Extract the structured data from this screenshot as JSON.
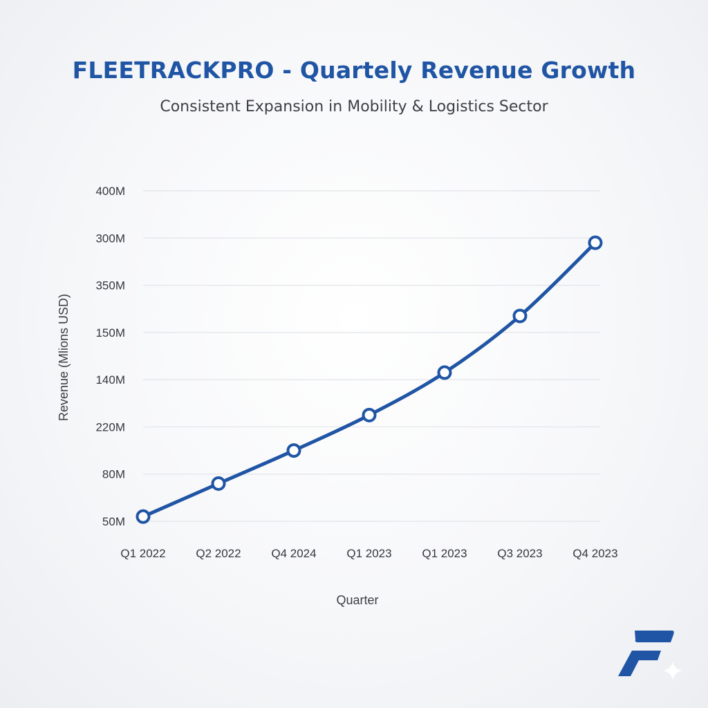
{
  "chart_data": {
    "type": "line",
    "title": "FLEETRACKPRO - Quartely Revenue Growth",
    "subtitle": "Consistent Expansion in Mobility & Logistics Sector",
    "xlabel": "Quarter",
    "ylabel": "Revenue (Mlions USD)",
    "categories": [
      "Q1 2022",
      "Q2 2022",
      "Q4 2024",
      "Q1 2023",
      "Q1 2023",
      "Q3 2023",
      "Q4 2023"
    ],
    "y_tick_labels": [
      "50M",
      "80M",
      "220M",
      "140M",
      "150M",
      "350M",
      "300M",
      "400M"
    ],
    "y_tick_positions": [
      0,
      1,
      2,
      3,
      4,
      5,
      6,
      7
    ],
    "ylim": [
      0,
      7
    ],
    "series": [
      {
        "values": [
          0.1,
          0.8,
          1.5,
          2.25,
          3.15,
          4.35,
          5.9
        ]
      }
    ],
    "grid": true,
    "colors": {
      "line": "#1f55a4",
      "marker_fill": "#ffffff",
      "grid": "#e2e4e8",
      "title": "#1f55a4",
      "logo": "#1f55a4"
    }
  },
  "logo": {
    "icon": "fleetrackpro-f-logo"
  }
}
